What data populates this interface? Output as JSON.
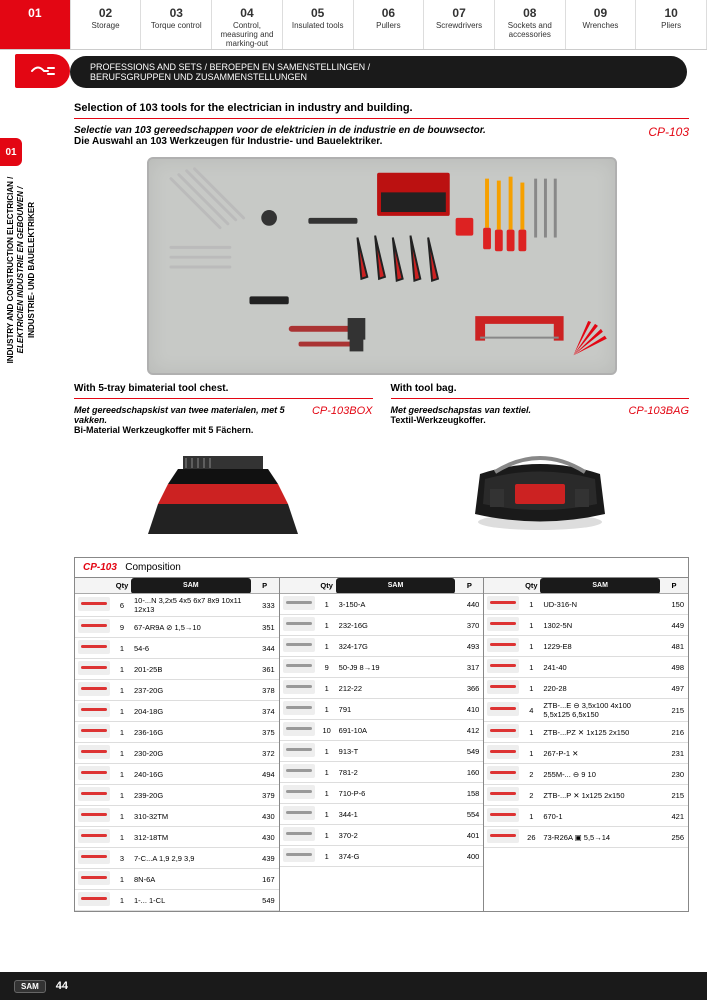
{
  "nav": [
    {
      "num": "01",
      "label": ""
    },
    {
      "num": "02",
      "label": "Storage"
    },
    {
      "num": "03",
      "label": "Torque control"
    },
    {
      "num": "04",
      "label": "Control, measuring and marking-out"
    },
    {
      "num": "05",
      "label": "Insulated tools"
    },
    {
      "num": "06",
      "label": "Pullers"
    },
    {
      "num": "07",
      "label": "Screwdrivers"
    },
    {
      "num": "08",
      "label": "Sockets and accessories"
    },
    {
      "num": "09",
      "label": "Wrenches"
    },
    {
      "num": "10",
      "label": "Pliers"
    }
  ],
  "blackbar": {
    "line1": "PROFESSIONS AND SETS / BEROEPEN EN SAMENSTELLINGEN /",
    "line2": "BERUFSGRUPPEN UND ZUSAMMENSTELLUNGEN"
  },
  "section_num": "01",
  "vside": {
    "en": "INDUSTRY AND CONSTRUCTION ELECTRICIAN /",
    "nl": "ELEKTRICIEN INDUSTRIE EN GEBOUWEN /",
    "de": "INDUSTRIE- UND BAUELEKTRIKER"
  },
  "hero": {
    "en": "Selection of 103 tools for the electrician in industry and building.",
    "nl": "Selectie van 103 gereedschappen voor de elektricien in de industrie en de bouwsector.",
    "de": "Die Auswahl an 103 Werkzeugen für Industrie- und Bauelektriker.",
    "sku": "CP-103"
  },
  "box": {
    "en": "With 5-tray bimaterial tool chest.",
    "nl": "Met gereedschapskist van twee materialen, met 5 vakken.",
    "de": "Bi-Material Werkzeugkoffer mit 5 Fächern.",
    "sku": "CP-103BOX"
  },
  "bag": {
    "en": "With tool bag.",
    "nl": "Met gereedschapstas van textiel.",
    "de": "Textil-Werkzeugkoffer.",
    "sku": "CP-103BAG"
  },
  "comp": {
    "title_sku": "CP-103",
    "title_label": "Composition",
    "headers": {
      "qty": "Qty",
      "sam": "SAM",
      "p": "P"
    },
    "col1": [
      {
        "q": "6",
        "ref": "10-...N 3,2x5 4x5 6x7 8x9 10x11 12x13",
        "p": "333"
      },
      {
        "q": "9",
        "ref": "67-AR9A ⊘ 1,5→10",
        "p": "351"
      },
      {
        "q": "1",
        "ref": "54-6",
        "p": "344"
      },
      {
        "q": "1",
        "ref": "201-25B",
        "p": "361"
      },
      {
        "q": "1",
        "ref": "237-20G",
        "p": "378"
      },
      {
        "q": "1",
        "ref": "204-18G",
        "p": "374"
      },
      {
        "q": "1",
        "ref": "236-16G",
        "p": "375"
      },
      {
        "q": "1",
        "ref": "230-20G",
        "p": "372"
      },
      {
        "q": "1",
        "ref": "240-16G",
        "p": "494"
      },
      {
        "q": "1",
        "ref": "239-20G",
        "p": "379"
      },
      {
        "q": "1",
        "ref": "310-32TM",
        "p": "430"
      },
      {
        "q": "1",
        "ref": "312-18TM",
        "p": "430"
      },
      {
        "q": "3",
        "ref": "7-C...A 1,9 2,9 3,9",
        "p": "439"
      },
      {
        "q": "1",
        "ref": "8N-6A",
        "p": "167"
      },
      {
        "q": "1",
        "ref": "1-... 1-CL",
        "p": "549"
      }
    ],
    "col2": [
      {
        "q": "1",
        "ref": "3-150-A",
        "p": "440"
      },
      {
        "q": "1",
        "ref": "232-16G",
        "p": "370"
      },
      {
        "q": "1",
        "ref": "324-17G",
        "p": "493"
      },
      {
        "q": "9",
        "ref": "50-J9 8→19",
        "p": "317"
      },
      {
        "q": "1",
        "ref": "212-22",
        "p": "366"
      },
      {
        "q": "1",
        "ref": "791",
        "p": "410"
      },
      {
        "q": "10",
        "ref": "691-10A",
        "p": "412"
      },
      {
        "q": "1",
        "ref": "913-T",
        "p": "549"
      },
      {
        "q": "1",
        "ref": "781-2",
        "p": "160"
      },
      {
        "q": "1",
        "ref": "710-P-6",
        "p": "158"
      },
      {
        "q": "1",
        "ref": "344-1",
        "p": "554"
      },
      {
        "q": "1",
        "ref": "370-2",
        "p": "401"
      },
      {
        "q": "1",
        "ref": "374-G",
        "p": "400"
      }
    ],
    "col3": [
      {
        "q": "1",
        "ref": "UD-316-N",
        "p": "150"
      },
      {
        "q": "1",
        "ref": "1302-5N",
        "p": "449"
      },
      {
        "q": "1",
        "ref": "1229-E8",
        "p": "481"
      },
      {
        "q": "1",
        "ref": "241-40",
        "p": "498"
      },
      {
        "q": "1",
        "ref": "220-28",
        "p": "497"
      },
      {
        "q": "4",
        "ref": "ZTB-...E ⊖ 3,5x100 4x100 5,5x125 6,5x150",
        "p": "215"
      },
      {
        "q": "1",
        "ref": "ZTB-...PZ ✕ 1x125 2x150",
        "p": "216"
      },
      {
        "q": "1",
        "ref": "267-P-1 ✕",
        "p": "231"
      },
      {
        "q": "2",
        "ref": "255M-... ⊖ 9 10",
        "p": "230"
      },
      {
        "q": "2",
        "ref": "ZTB-...P ✕ 1x125 2x150",
        "p": "215"
      },
      {
        "q": "1",
        "ref": "670-1",
        "p": "421"
      },
      {
        "q": "26",
        "ref": "73-R26A ▣ 5,5→14",
        "p": "256"
      }
    ]
  },
  "footer": {
    "brand": "SAM",
    "page": "44"
  },
  "colors": {
    "red": "#e30613",
    "black": "#1a1a1a",
    "herobg": "#c7c9c6"
  }
}
